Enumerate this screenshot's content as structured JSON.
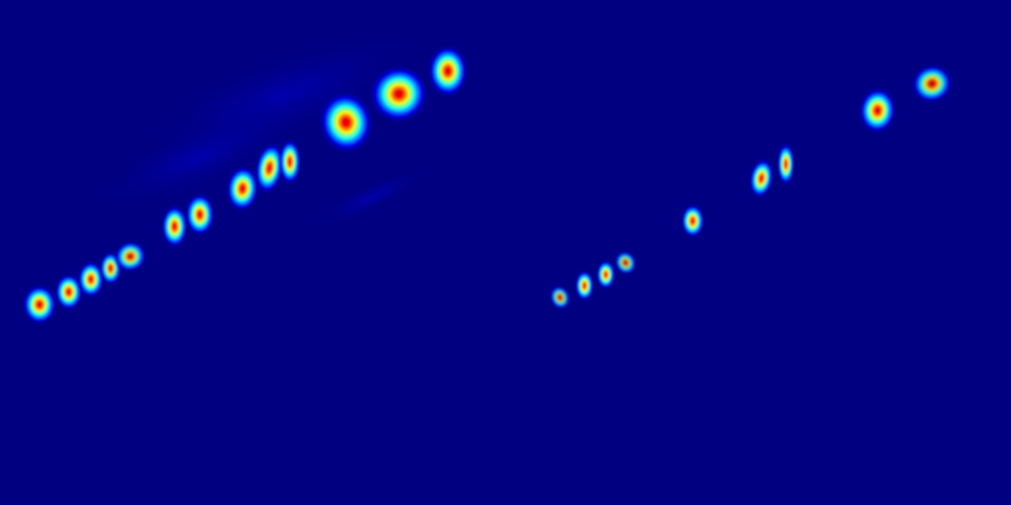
{
  "image": {
    "background_color": "#000080",
    "colormap": [
      "#000080",
      "#0000ff",
      "#00ffff",
      "#ffff00",
      "#ff0000",
      "#c80000"
    ],
    "left_panel": {
      "spots": [
        {
          "intensity": 1.0
        },
        {
          "intensity": 1.0
        },
        {
          "intensity": 1.0
        },
        {
          "intensity": 0.95
        },
        {
          "intensity": 0.9
        },
        {
          "intensity": 1.0
        },
        {
          "intensity": 1.0
        },
        {
          "intensity": 1.0
        },
        {
          "intensity": 1.0
        },
        {
          "intensity": 1.0
        },
        {
          "intensity": 1.0
        },
        {
          "intensity": 1.0
        },
        {
          "intensity": 1.0
        }
      ]
    },
    "right_panel": {
      "spots": [
        {
          "intensity": 0.8
        },
        {
          "intensity": 1.0
        },
        {
          "intensity": 1.0
        },
        {
          "intensity": 0.8
        },
        {
          "intensity": 1.0
        },
        {
          "intensity": 1.0
        },
        {
          "intensity": 1.0
        },
        {
          "intensity": 1.0
        },
        {
          "intensity": 0.9
        }
      ]
    }
  }
}
